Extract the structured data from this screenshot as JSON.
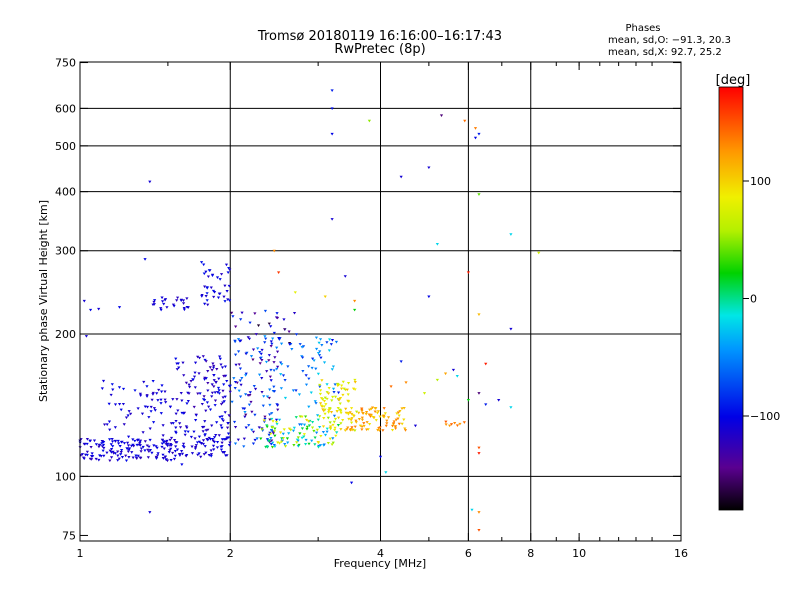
{
  "chart_data": {
    "type": "scatter",
    "title": "Tromsø 20180119 16:16:00–16:17:43",
    "subtitle": "RwPretec (8p)",
    "xlabel": "Frequency [MHz]",
    "ylabel": "Stationary phase Virtual Height [km]",
    "x_scale": "log2",
    "y_scale": "log",
    "xlim": [
      1,
      16
    ],
    "ylim": [
      73,
      752
    ],
    "x_ticks": [
      1,
      2,
      4,
      6,
      8,
      10,
      16
    ],
    "x_tick_labels": [
      "1",
      "2",
      "4",
      "6",
      "8",
      "10",
      "16"
    ],
    "y_ticks": [
      75,
      100,
      200,
      300,
      400,
      500,
      600,
      750
    ],
    "y_tick_labels": [
      "75",
      "100",
      "200",
      "300",
      "400",
      "500",
      "600",
      "750"
    ],
    "x_grid": [
      2,
      4,
      6,
      8
    ],
    "y_grid": [
      100,
      200,
      300,
      400,
      500,
      600
    ],
    "x_minor_ticks": [
      1.5,
      3,
      5,
      7,
      9,
      10,
      11,
      12,
      13,
      14
    ],
    "phase_info": {
      "heading": "Phases",
      "line_o": "mean, sd,O: −91.3, 20.3",
      "line_x": "mean, sd,X:  92.7, 25.2"
    },
    "colorbar": {
      "label": "[deg]",
      "range": [
        -180,
        180
      ],
      "ticks": [
        100,
        0,
        -100
      ],
      "tick_labels": [
        "100",
        "0",
        "−100"
      ]
    },
    "clusters": [
      {
        "x_range": [
          1.0,
          1.55
        ],
        "y_range": [
          108,
          120
        ],
        "phase_range": [
          -125,
          -95
        ],
        "count": 150
      },
      {
        "x_range": [
          1.1,
          1.55
        ],
        "y_range": [
          118,
          160
        ],
        "phase_range": [
          -120,
          -95
        ],
        "count": 70
      },
      {
        "x_range": [
          1.55,
          2.0
        ],
        "y_range": [
          110,
          125
        ],
        "phase_range": [
          -120,
          -95
        ],
        "count": 80
      },
      {
        "x_range": [
          1.55,
          2.0
        ],
        "y_range": [
          125,
          180
        ],
        "phase_range": [
          -130,
          -95
        ],
        "count": 120
      },
      {
        "x_range": [
          1.4,
          1.65
        ],
        "y_range": [
          225,
          240
        ],
        "phase_range": [
          -120,
          -100
        ],
        "count": 25
      },
      {
        "x_range": [
          1.75,
          2.0
        ],
        "y_range": [
          230,
          285
        ],
        "phase_range": [
          -120,
          -90
        ],
        "count": 40
      },
      {
        "x_range": [
          2.0,
          2.5
        ],
        "y_range": [
          115,
          200
        ],
        "phase_range": [
          -150,
          -40
        ],
        "count": 120
      },
      {
        "x_range": [
          2.0,
          2.7
        ],
        "y_range": [
          185,
          225
        ],
        "phase_range": [
          -170,
          -60
        ],
        "count": 30
      },
      {
        "x_range": [
          2.3,
          3.3
        ],
        "y_range": [
          115,
          135
        ],
        "phase_range": [
          -60,
          100
        ],
        "count": 110
      },
      {
        "x_range": [
          2.5,
          3.3
        ],
        "y_range": [
          140,
          200
        ],
        "phase_range": [
          -100,
          -20
        ],
        "count": 60
      },
      {
        "x_range": [
          3.0,
          3.6
        ],
        "y_range": [
          125,
          160
        ],
        "phase_range": [
          60,
          110
        ],
        "count": 80
      },
      {
        "x_range": [
          3.4,
          4.5
        ],
        "y_range": [
          125,
          140
        ],
        "phase_range": [
          90,
          140
        ],
        "count": 90
      },
      {
        "x_range": [
          5.4,
          5.9
        ],
        "y_range": [
          128,
          131
        ],
        "phase_range": [
          120,
          150
        ],
        "count": 8
      }
    ],
    "points": [
      {
        "x": 3.2,
        "y": 655,
        "phase": -90
      },
      {
        "x": 3.2,
        "y": 600,
        "phase": -95
      },
      {
        "x": 3.2,
        "y": 530,
        "phase": -100
      },
      {
        "x": 3.2,
        "y": 350,
        "phase": -110
      },
      {
        "x": 3.4,
        "y": 265,
        "phase": -110
      },
      {
        "x": 3.8,
        "y": 565,
        "phase": 50
      },
      {
        "x": 5.3,
        "y": 580,
        "phase": -150
      },
      {
        "x": 5.9,
        "y": 565,
        "phase": 140
      },
      {
        "x": 6.2,
        "y": 545,
        "phase": 135
      },
      {
        "x": 6.3,
        "y": 530,
        "phase": -90
      },
      {
        "x": 6.2,
        "y": 520,
        "phase": -100
      },
      {
        "x": 5.0,
        "y": 450,
        "phase": -110
      },
      {
        "x": 4.4,
        "y": 430,
        "phase": -110
      },
      {
        "x": 6.3,
        "y": 395,
        "phase": 40
      },
      {
        "x": 5.2,
        "y": 310,
        "phase": -20
      },
      {
        "x": 7.3,
        "y": 325,
        "phase": -20
      },
      {
        "x": 8.3,
        "y": 297,
        "phase": 70
      },
      {
        "x": 6.0,
        "y": 270,
        "phase": 170
      },
      {
        "x": 5.0,
        "y": 240,
        "phase": -100
      },
      {
        "x": 7.3,
        "y": 205,
        "phase": -110
      },
      {
        "x": 6.3,
        "y": 220,
        "phase": 110
      },
      {
        "x": 1.02,
        "y": 235,
        "phase": -110
      },
      {
        "x": 1.05,
        "y": 225,
        "phase": -100
      },
      {
        "x": 1.09,
        "y": 226,
        "phase": -110
      },
      {
        "x": 1.2,
        "y": 228,
        "phase": -100
      },
      {
        "x": 1.03,
        "y": 198,
        "phase": -110
      },
      {
        "x": 1.35,
        "y": 288,
        "phase": -100
      },
      {
        "x": 1.38,
        "y": 420,
        "phase": -110
      },
      {
        "x": 1.38,
        "y": 84,
        "phase": -110
      },
      {
        "x": 1.6,
        "y": 106,
        "phase": -100
      },
      {
        "x": 1.68,
        "y": 112,
        "phase": -110
      },
      {
        "x": 2.45,
        "y": 300,
        "phase": 130
      },
      {
        "x": 2.5,
        "y": 270,
        "phase": 160
      },
      {
        "x": 2.7,
        "y": 245,
        "phase": 80
      },
      {
        "x": 3.1,
        "y": 240,
        "phase": 100
      },
      {
        "x": 3.55,
        "y": 235,
        "phase": 130
      },
      {
        "x": 3.55,
        "y": 225,
        "phase": 20
      },
      {
        "x": 3.5,
        "y": 97,
        "phase": -100
      },
      {
        "x": 4.0,
        "y": 110,
        "phase": -100
      },
      {
        "x": 4.1,
        "y": 102,
        "phase": -20
      },
      {
        "x": 4.2,
        "y": 155,
        "phase": 140
      },
      {
        "x": 4.4,
        "y": 175,
        "phase": -90
      },
      {
        "x": 4.5,
        "y": 158,
        "phase": 130
      },
      {
        "x": 4.7,
        "y": 128,
        "phase": -110
      },
      {
        "x": 4.9,
        "y": 150,
        "phase": 70
      },
      {
        "x": 5.2,
        "y": 160,
        "phase": 60
      },
      {
        "x": 5.4,
        "y": 165,
        "phase": 120
      },
      {
        "x": 5.6,
        "y": 168,
        "phase": -110
      },
      {
        "x": 5.7,
        "y": 163,
        "phase": -20
      },
      {
        "x": 6.0,
        "y": 145,
        "phase": 20
      },
      {
        "x": 6.3,
        "y": 150,
        "phase": -150
      },
      {
        "x": 6.5,
        "y": 142,
        "phase": -90
      },
      {
        "x": 6.5,
        "y": 173,
        "phase": 170
      },
      {
        "x": 6.9,
        "y": 145,
        "phase": -110
      },
      {
        "x": 7.3,
        "y": 140,
        "phase": -20
      },
      {
        "x": 6.3,
        "y": 115,
        "phase": 150
      },
      {
        "x": 6.3,
        "y": 112,
        "phase": 170
      },
      {
        "x": 6.1,
        "y": 85,
        "phase": -20
      },
      {
        "x": 6.3,
        "y": 84,
        "phase": 130
      },
      {
        "x": 6.3,
        "y": 77,
        "phase": 150
      }
    ]
  }
}
